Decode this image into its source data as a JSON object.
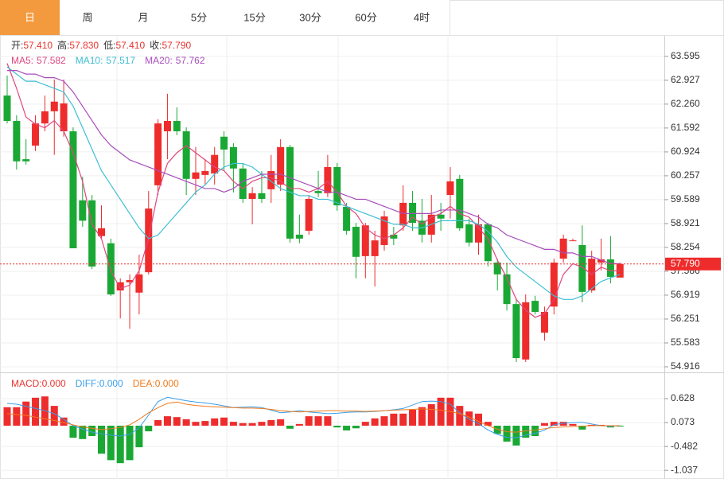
{
  "tabs": [
    "日",
    "周",
    "月",
    "5分",
    "15分",
    "30分",
    "60分",
    "4时"
  ],
  "active_tab": 0,
  "chart_data": [
    {
      "type": "candlestick",
      "up_color": "#ee2c2c",
      "down_color": "#1aa834",
      "info": {
        "labels": [
          "开:",
          "高:",
          "低:",
          "收:"
        ],
        "values": [
          57.41,
          57.83,
          57.41,
          57.79
        ],
        "value_labels": [
          "57.410",
          "57.830",
          "57.410",
          "57.790"
        ],
        "color": "#e8342e"
      },
      "last_price": {
        "value": 57.79,
        "label": "57.790"
      },
      "ylim": [
        54.76,
        64.17
      ],
      "yticks": [
        63.595,
        62.927,
        {
          "value": 62.26,
          "label": "62.260"
        },
        61.592,
        60.924,
        60.257,
        59.589,
        58.921,
        58.254,
        57.586,
        56.919,
        56.251,
        55.583,
        54.916
      ],
      "grid": true,
      "open": [
        62.5,
        61.79,
        60.72,
        61.1,
        61.72,
        62.06,
        61.5,
        61.5,
        59.57,
        59.57,
        58.57,
        58.37,
        57.05,
        57.28,
        56.99,
        57.56,
        59.99,
        61.5,
        61.79,
        61.5,
        60.17,
        60.28,
        60.32,
        61.35,
        61.06,
        60.46,
        59.61,
        59.77,
        59.88,
        60.01,
        61.06,
        58.61,
        58.72,
        59.83,
        59.77,
        60.5,
        59.39,
        58.83,
        58.01,
        58.01,
        58.32,
        58.61,
        58.87,
        59.5,
        59.0,
        58.61,
        59.17,
        59.72,
        60.17,
        58.9,
        58.39,
        58.9,
        57.83,
        57.5,
        56.67,
        55.12,
        56.76,
        55.87,
        56.6,
        57.94,
        58.43,
        58.32,
        57.05,
        57.83,
        57.92,
        57.41
      ],
      "high": [
        63.06,
        61.95,
        61.28,
        61.95,
        62.5,
        62.95,
        62.95,
        61.61,
        60.23,
        59.72,
        59.43,
        58.5,
        57.39,
        57.5,
        58.05,
        59.83,
        61.84,
        62.55,
        62.17,
        61.61,
        61.06,
        60.72,
        61.06,
        61.5,
        61.17,
        60.61,
        59.94,
        60.39,
        60.84,
        61.28,
        61.12,
        59.17,
        59.72,
        60.39,
        60.84,
        60.61,
        59.5,
        58.94,
        58.94,
        58.72,
        59.28,
        58.83,
        59.99,
        59.83,
        59.61,
        59.72,
        59.5,
        60.5,
        60.28,
        59.06,
        59.17,
        58.94,
        57.94,
        57.83,
        56.83,
        56.94,
        56.9,
        56.6,
        57.94,
        58.61,
        58.5,
        58.87,
        58.16,
        58.5,
        58.57,
        57.83
      ],
      "low": [
        61.72,
        60.43,
        60.57,
        60.95,
        61.5,
        60.84,
        61.35,
        58.23,
        58.83,
        57.65,
        58.5,
        56.9,
        56.27,
        55.98,
        56.38,
        57.5,
        59.72,
        60.72,
        61.39,
        59.72,
        59.72,
        60.01,
        60.01,
        60.39,
        59.79,
        59.5,
        58.9,
        59.5,
        59.5,
        59.83,
        58.39,
        58.37,
        58.61,
        59.66,
        59.66,
        59.28,
        58.61,
        57.39,
        57.39,
        57.16,
        58.16,
        58.32,
        58.72,
        58.72,
        58.39,
        58.39,
        58.72,
        59.06,
        58.72,
        58.28,
        58.05,
        57.72,
        57.05,
        56.49,
        55.05,
        55.05,
        56.38,
        55.65,
        56.38,
        57.83,
        58.43,
        56.72,
        56.99,
        57.61,
        57.25,
        57.41
      ],
      "close": [
        61.79,
        60.66,
        60.66,
        61.72,
        62.06,
        62.33,
        62.28,
        58.23,
        59.0,
        57.72,
        58.79,
        56.94,
        57.28,
        57.34,
        57.5,
        59.34,
        61.72,
        61.79,
        61.5,
        60.17,
        60.35,
        60.39,
        60.84,
        60.99,
        60.46,
        59.61,
        59.77,
        59.61,
        60.39,
        61.06,
        58.5,
        58.5,
        59.61,
        59.77,
        60.5,
        59.43,
        58.72,
        57.99,
        58.87,
        58.45,
        59.12,
        58.5,
        59.5,
        58.94,
        58.61,
        59.17,
        59.06,
        60.1,
        58.79,
        58.39,
        58.9,
        57.87,
        57.5,
        56.67,
        55.16,
        56.72,
        56.45,
        56.45,
        57.83,
        58.5,
        58.45,
        57.01,
        57.94,
        57.92,
        57.43,
        57.79
      ],
      "series": [
        {
          "name": "MA5:",
          "color": "#e0467f",
          "current": 57.582,
          "current_label": "57.582",
          "values": [
            63.4,
            62.7,
            61.9,
            61.7,
            61.6,
            61.8,
            61.5,
            60.9,
            60.1,
            58.9,
            58.5,
            57.6,
            57.1,
            57.2,
            57.6,
            58.5,
            59.8,
            60.6,
            60.9,
            61.1,
            60.9,
            60.7,
            60.5,
            60.4,
            60.1,
            59.9,
            60.1,
            60.2,
            60.2,
            60.1,
            59.9,
            59.9,
            59.8,
            59.9,
            60.1,
            59.8,
            59.4,
            59.2,
            58.8,
            58.6,
            58.5,
            58.6,
            58.8,
            59.1,
            58.9,
            59.1,
            59.2,
            59.4,
            59.2,
            59.1,
            58.8,
            58.5,
            57.9,
            57.4,
            56.8,
            56.5,
            56.3,
            56.4,
            56.8,
            57.5,
            57.8,
            57.7,
            57.5,
            57.7,
            57.6,
            57.6
          ]
        },
        {
          "name": "MA10:",
          "color": "#3dbfd4",
          "current": 57.517,
          "current_label": "57.517",
          "values": [
            63.3,
            63.1,
            62.9,
            62.9,
            62.8,
            62.7,
            62.6,
            62.2,
            61.6,
            61.0,
            60.4,
            60.0,
            59.6,
            59.2,
            58.8,
            58.5,
            58.6,
            58.9,
            59.2,
            59.5,
            59.8,
            60.0,
            60.3,
            60.5,
            60.6,
            60.6,
            60.5,
            60.3,
            60.1,
            59.9,
            59.8,
            59.7,
            59.7,
            59.6,
            59.6,
            59.5,
            59.4,
            59.3,
            59.2,
            59.1,
            59.0,
            58.9,
            58.9,
            58.8,
            58.8,
            58.9,
            59.0,
            59.0,
            59.0,
            59.0,
            58.9,
            58.7,
            58.4,
            58.0,
            57.7,
            57.5,
            57.3,
            57.1,
            56.9,
            56.8,
            56.8,
            56.9,
            57.1,
            57.3,
            57.4,
            57.5
          ]
        },
        {
          "name": "MA20:",
          "color": "#a84dbb",
          "current": 57.762,
          "current_label": "57.762",
          "values": [
            63.2,
            63.2,
            63.1,
            63.1,
            63.0,
            63.0,
            62.9,
            62.6,
            62.2,
            61.8,
            61.4,
            61.1,
            60.9,
            60.7,
            60.6,
            60.5,
            60.4,
            60.3,
            60.2,
            60.1,
            60.0,
            59.9,
            59.9,
            59.8,
            59.9,
            60.1,
            60.2,
            60.3,
            60.3,
            60.3,
            60.2,
            60.1,
            60.0,
            59.9,
            59.8,
            59.8,
            59.7,
            59.6,
            59.6,
            59.5,
            59.4,
            59.3,
            59.2,
            59.2,
            59.2,
            59.2,
            59.3,
            59.3,
            59.3,
            59.2,
            59.1,
            58.9,
            58.8,
            58.6,
            58.5,
            58.4,
            58.3,
            58.2,
            58.2,
            58.1,
            58.1,
            58.0,
            58.0,
            57.9,
            57.8,
            57.8
          ]
        }
      ]
    },
    {
      "type": "macd",
      "up_color": "#ee2c2c",
      "down_color": "#1aa834",
      "ylim": [
        -1.2,
        1.164
      ],
      "yticks": [
        0.628,
        0.073,
        -0.482,
        -1.037
      ],
      "series": [
        {
          "name": "MACD:",
          "color": "#e8342e",
          "current": 0,
          "current_label": "0.000",
          "values": [
            0.43,
            0.43,
            0.56,
            0.65,
            0.68,
            0.46,
            0.19,
            -0.28,
            -0.31,
            -0.24,
            -0.65,
            -0.8,
            -0.87,
            -0.8,
            -0.5,
            -0.13,
            0.13,
            0.22,
            0.2,
            0.15,
            0.09,
            0.11,
            0.17,
            0.19,
            0.09,
            0.06,
            0.06,
            0.09,
            0.13,
            0.15,
            -0.07,
            0.04,
            0.22,
            0.22,
            0.22,
            -0.04,
            -0.11,
            -0.06,
            0.09,
            0.17,
            0.22,
            0.28,
            0.28,
            0.37,
            0.43,
            0.5,
            0.65,
            0.65,
            0.46,
            0.33,
            0.28,
            0.09,
            -0.19,
            -0.37,
            -0.46,
            -0.28,
            -0.24,
            0.06,
            0.09,
            0.09,
            0.04,
            -0.09,
            0.02,
            0.02,
            -0.04,
            -0.02
          ]
        },
        {
          "name": "DIFF:",
          "color": "#3a9ee8",
          "current": 0,
          "current_label": "0.000",
          "values": [
            0.52,
            0.5,
            0.45,
            0.4,
            0.35,
            0.28,
            0.15,
            0.0,
            -0.08,
            -0.15,
            -0.19,
            -0.22,
            -0.24,
            -0.2,
            -0.05,
            0.25,
            0.56,
            0.66,
            0.62,
            0.58,
            0.55,
            0.53,
            0.5,
            0.46,
            0.42,
            0.43,
            0.44,
            0.42,
            0.36,
            0.3,
            0.32,
            0.35,
            0.32,
            0.3,
            0.28,
            0.29,
            0.31,
            0.32,
            0.32,
            0.33,
            0.35,
            0.37,
            0.4,
            0.48,
            0.56,
            0.57,
            0.56,
            0.5,
            0.3,
            0.15,
            0.05,
            -0.1,
            -0.2,
            -0.27,
            -0.28,
            -0.22,
            -0.18,
            -0.1,
            0.02,
            0.06,
            0.07,
            0.08,
            0.04,
            0.0,
            -0.01,
            0.0
          ]
        },
        {
          "name": "DEA:",
          "color": "#f07a1c",
          "current": 0,
          "current_label": "0.000",
          "values": [
            0.28,
            0.26,
            0.24,
            0.2,
            0.16,
            0.12,
            0.07,
            0.02,
            -0.03,
            -0.06,
            -0.09,
            -0.07,
            -0.04,
            0.02,
            0.15,
            0.3,
            0.42,
            0.52,
            0.55,
            0.5,
            0.47,
            0.45,
            0.44,
            0.43,
            0.42,
            0.41,
            0.41,
            0.4,
            0.38,
            0.35,
            0.33,
            0.32,
            0.33,
            0.34,
            0.35,
            0.35,
            0.34,
            0.34,
            0.33,
            0.34,
            0.35,
            0.36,
            0.37,
            0.38,
            0.39,
            0.38,
            0.36,
            0.33,
            0.28,
            0.2,
            0.1,
            0.0,
            -0.08,
            -0.14,
            -0.15,
            -0.12,
            -0.1,
            -0.07,
            -0.04,
            -0.03,
            -0.02,
            -0.01,
            0.0,
            0.0,
            0.0,
            0.0
          ]
        }
      ]
    }
  ]
}
